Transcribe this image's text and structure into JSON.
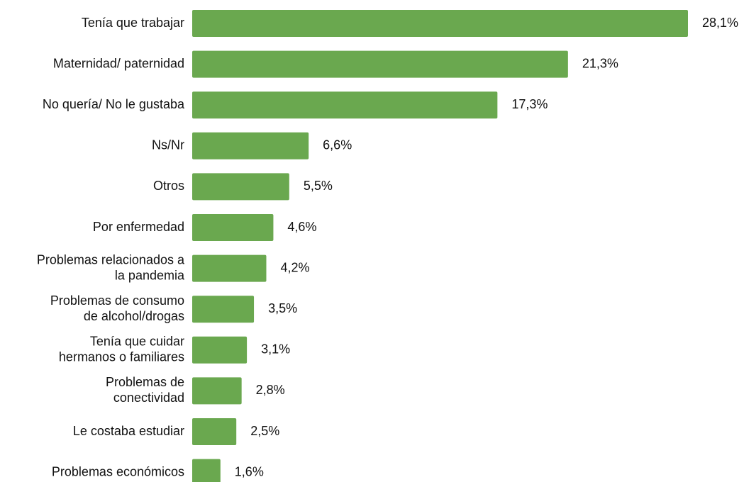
{
  "chart_data": {
    "type": "bar",
    "orientation": "horizontal",
    "color": "#6aa84f",
    "categories": [
      [
        "Tenía que trabajar"
      ],
      [
        "Maternidad/ paternidad"
      ],
      [
        "No quería/ No le gustaba"
      ],
      [
        "Ns/Nr"
      ],
      [
        "Otros"
      ],
      [
        "Por enfermedad"
      ],
      [
        "Problemas relacionados a",
        "la pandemia"
      ],
      [
        "Problemas de consumo",
        "de alcohol/drogas"
      ],
      [
        "Tenía que cuidar",
        "hermanos o familiares"
      ],
      [
        "Problemas de",
        "conectividad"
      ],
      [
        "Le costaba estudiar"
      ],
      [
        "Problemas económicos"
      ]
    ],
    "values": [
      28.1,
      21.3,
      17.3,
      6.6,
      5.5,
      4.6,
      4.2,
      3.5,
      3.1,
      2.8,
      2.5,
      1.6
    ],
    "value_labels": [
      "28,1%",
      "21,3%",
      "17,3%",
      "6,6%",
      "5,5%",
      "4,6%",
      "4,2%",
      "3,5%",
      "3,1%",
      "2,8%",
      "2,5%",
      "1,6%"
    ]
  }
}
